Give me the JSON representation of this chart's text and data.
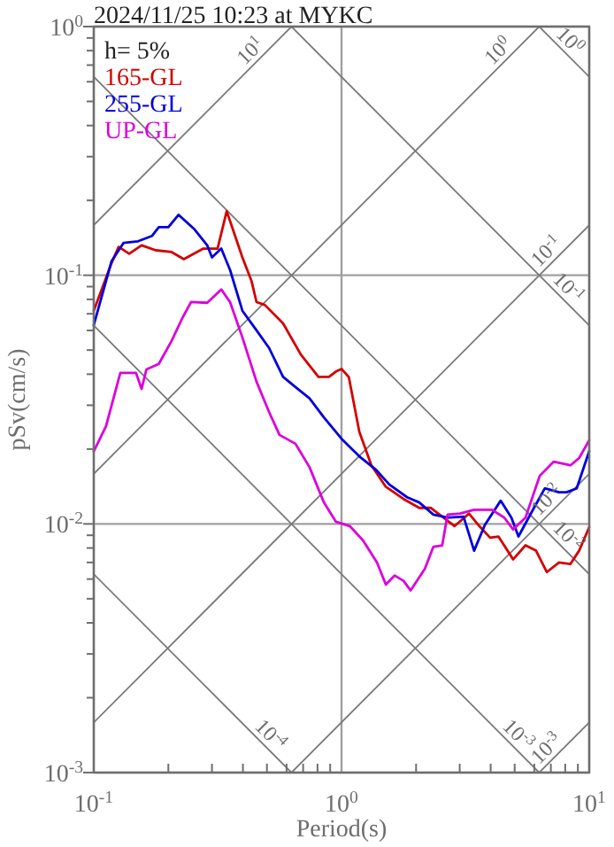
{
  "chart_data": {
    "type": "line",
    "title": "2024/11/25 10:23 at MYKC",
    "xlabel": "Period(s)",
    "ylabel": "pSv(cm/s)",
    "log": "xy",
    "grid": true,
    "legend": "top left",
    "annotations": [
      "h= 5%",
      {
        "text": "10$^{1}$",
        "x": 0.628,
        "y": 1
      },
      {
        "text": "10$^{0}$",
        "x": 6.28,
        "y": 1
      },
      {
        "text": "10$^{-1}$",
        "x": 10,
        "y": 0.159
      },
      {
        "text": "10$^{-2}$",
        "x": 10,
        "y": 0.0159
      },
      {
        "text": "10$^{-3}$",
        "x": 10,
        "y": 0.00159
      },
      {
        "text": "10$^{0}$",
        "x": 10,
        "y": 0.628
      },
      {
        "text": "10$^{-1}$",
        "x": 10,
        "y": 0.0628
      },
      {
        "text": "10$^{-2}$",
        "x": 10,
        "y": 0.00628
      },
      {
        "text": "10$^{-3}$",
        "x": 6.28,
        "y": 0.001
      },
      {
        "text": "10$^{-4}$",
        "x": 0.628,
        "y": 0.001
      }
    ],
    "xlim": [
      0.1,
      10
    ],
    "ylim": [
      0.001,
      1
    ],
    "xticks": [
      {
        "value": 0.1,
        "label": "10$^{-1}$"
      },
      {
        "value": 0.2,
        "label": null
      },
      {
        "value": 0.3,
        "label": null
      },
      {
        "value": 0.4,
        "label": null
      },
      {
        "value": 0.5,
        "label": null
      },
      {
        "value": 0.6,
        "label": null
      },
      {
        "value": 0.7,
        "label": null
      },
      {
        "value": 0.8,
        "label": null
      },
      {
        "value": 0.9,
        "label": null
      },
      {
        "value": 1,
        "label": "10$^{0}$"
      },
      {
        "value": 2,
        "label": null
      },
      {
        "value": 3,
        "label": null
      },
      {
        "value": 4,
        "label": null
      },
      {
        "value": 5,
        "label": null
      },
      {
        "value": 6,
        "label": null
      },
      {
        "value": 7,
        "label": null
      },
      {
        "value": 8,
        "label": null
      },
      {
        "value": 9,
        "label": null
      },
      {
        "value": 10,
        "label": "10$^{1}$"
      }
    ],
    "yticks": [
      {
        "value": 0.001,
        "label": "10$^{-3}$"
      },
      {
        "value": 0.002,
        "label": null
      },
      {
        "value": 0.003,
        "label": null
      },
      {
        "value": 0.004,
        "label": null
      },
      {
        "value": 0.005,
        "label": null
      },
      {
        "value": 0.006,
        "label": null
      },
      {
        "value": 0.007,
        "label": null
      },
      {
        "value": 0.008,
        "label": null
      },
      {
        "value": 0.009,
        "label": null
      },
      {
        "value": 0.01,
        "label": "10$^{-2}$"
      },
      {
        "value": 0.02,
        "label": null
      },
      {
        "value": 0.03,
        "label": null
      },
      {
        "value": 0.04,
        "label": null
      },
      {
        "value": 0.05,
        "label": null
      },
      {
        "value": 0.06,
        "label": null
      },
      {
        "value": 0.07,
        "label": null
      },
      {
        "value": 0.08,
        "label": null
      },
      {
        "value": 0.09,
        "label": null
      },
      {
        "value": 0.1,
        "label": "10$^{-1}$"
      },
      {
        "value": 0.2,
        "label": null
      },
      {
        "value": 0.3,
        "label": null
      },
      {
        "value": 0.4,
        "label": null
      },
      {
        "value": 0.5,
        "label": null
      },
      {
        "value": 0.6,
        "label": null
      },
      {
        "value": 0.7,
        "label": null
      },
      {
        "value": 0.8,
        "label": null
      },
      {
        "value": 0.9,
        "label": null
      },
      {
        "value": 1,
        "label": "10$^{0}$"
      }
    ],
    "series": [
      {
        "name": "165-GL",
        "color": "#d40000",
        "x": [
          0.1,
          0.118,
          0.126,
          0.139,
          0.156,
          0.178,
          0.206,
          0.231,
          0.277,
          0.316,
          0.344,
          0.398,
          0.433,
          0.454,
          0.49,
          0.581,
          0.685,
          0.807,
          0.89,
          0.95,
          1.0,
          1.07,
          1.18,
          1.32,
          1.51,
          1.78,
          2.06,
          2.29,
          2.55,
          2.86,
          3.27,
          3.6,
          3.98,
          4.3,
          4.93,
          5.53,
          6.1,
          6.74,
          7.55,
          8.4,
          9.1,
          10
        ],
        "values": [
          0.072,
          0.112,
          0.13,
          0.122,
          0.132,
          0.126,
          0.124,
          0.116,
          0.128,
          0.128,
          0.181,
          0.118,
          0.095,
          0.078,
          0.076,
          0.064,
          0.048,
          0.039,
          0.039,
          0.041,
          0.042,
          0.039,
          0.0235,
          0.0172,
          0.0141,
          0.0126,
          0.0116,
          0.0116,
          0.0107,
          0.0098,
          0.011,
          0.0098,
          0.0088,
          0.0089,
          0.0072,
          0.0082,
          0.0078,
          0.0064,
          0.007,
          0.0069,
          0.0078,
          0.0097
        ]
      },
      {
        "name": "255-GL",
        "color": "#0000dc",
        "x": [
          0.1,
          0.118,
          0.132,
          0.151,
          0.172,
          0.183,
          0.2,
          0.22,
          0.255,
          0.287,
          0.3,
          0.327,
          0.355,
          0.398,
          0.454,
          0.51,
          0.581,
          0.652,
          0.743,
          0.849,
          1.0,
          1.18,
          1.37,
          1.56,
          1.84,
          2.06,
          2.35,
          2.68,
          3.11,
          3.43,
          3.79,
          4.39,
          4.85,
          5.18,
          5.81,
          6.62,
          7.55,
          8.1,
          8.9,
          10
        ],
        "values": [
          0.063,
          0.114,
          0.135,
          0.137,
          0.144,
          0.156,
          0.156,
          0.175,
          0.153,
          0.132,
          0.118,
          0.128,
          0.105,
          0.072,
          0.06,
          0.051,
          0.039,
          0.0355,
          0.032,
          0.0268,
          0.022,
          0.0187,
          0.0166,
          0.0144,
          0.0128,
          0.0122,
          0.0109,
          0.0106,
          0.0107,
          0.0078,
          0.0099,
          0.0124,
          0.0106,
          0.0089,
          0.011,
          0.0139,
          0.0134,
          0.0134,
          0.0139,
          0.0196
        ]
      },
      {
        "name": "UP-GL",
        "color": "#dc00dc",
        "x": [
          0.1,
          0.112,
          0.128,
          0.148,
          0.156,
          0.163,
          0.183,
          0.206,
          0.228,
          0.247,
          0.287,
          0.327,
          0.355,
          0.398,
          0.454,
          0.51,
          0.562,
          0.652,
          0.743,
          0.849,
          0.95,
          1.08,
          1.22,
          1.39,
          1.51,
          1.64,
          1.78,
          1.9,
          2.17,
          2.35,
          2.55,
          2.68,
          3.01,
          3.43,
          4.05,
          4.54,
          4.93,
          5.53,
          6.31,
          7.19,
          8.4,
          9.1,
          10
        ],
        "values": [
          0.0196,
          0.0247,
          0.0405,
          0.0405,
          0.0349,
          0.0418,
          0.044,
          0.0544,
          0.0674,
          0.078,
          0.0775,
          0.0877,
          0.078,
          0.0562,
          0.0373,
          0.0282,
          0.0228,
          0.021,
          0.0169,
          0.0122,
          0.0102,
          0.0098,
          0.0086,
          0.007,
          0.0057,
          0.0062,
          0.0059,
          0.0054,
          0.0066,
          0.0081,
          0.0082,
          0.0109,
          0.011,
          0.0114,
          0.0114,
          0.0106,
          0.0095,
          0.0106,
          0.0156,
          0.0178,
          0.0172,
          0.0184,
          0.0217
        ]
      },
      {
        "type": "line",
        "color": "#7a7a7a",
        "x": [
          0.1,
          0.628
        ],
        "values": [
          0.159,
          1
        ]
      },
      {
        "type": "line",
        "color": "#7a7a7a",
        "x": [
          0.1,
          6.28
        ],
        "values": [
          0.0159,
          1
        ]
      },
      {
        "type": "line",
        "color": "#7a7a7a",
        "x": [
          0.1,
          10
        ],
        "values": [
          0.00159,
          0.159
        ]
      },
      {
        "type": "line",
        "color": "#7a7a7a",
        "x": [
          0.628,
          10
        ],
        "values": [
          0.001,
          0.0159
        ]
      },
      {
        "type": "line",
        "color": "#7a7a7a",
        "x": [
          6.28,
          10
        ],
        "values": [
          0.001,
          0.00159
        ]
      },
      {
        "type": "line",
        "color": "#7a7a7a",
        "x": [
          6.28,
          10
        ],
        "values": [
          1,
          0.628
        ]
      },
      {
        "type": "line",
        "color": "#7a7a7a",
        "x": [
          0.628,
          10
        ],
        "values": [
          1,
          0.0628
        ]
      },
      {
        "type": "line",
        "color": "#7a7a7a",
        "x": [
          0.1,
          10
        ],
        "values": [
          0.628,
          0.00628
        ]
      },
      {
        "type": "line",
        "color": "#7a7a7a",
        "x": [
          0.1,
          6.28
        ],
        "values": [
          0.0628,
          0.001
        ]
      },
      {
        "type": "line",
        "color": "#7a7a7a",
        "x": [
          0.1,
          0.628
        ],
        "values": [
          0.00628,
          0.001
        ]
      }
    ]
  }
}
